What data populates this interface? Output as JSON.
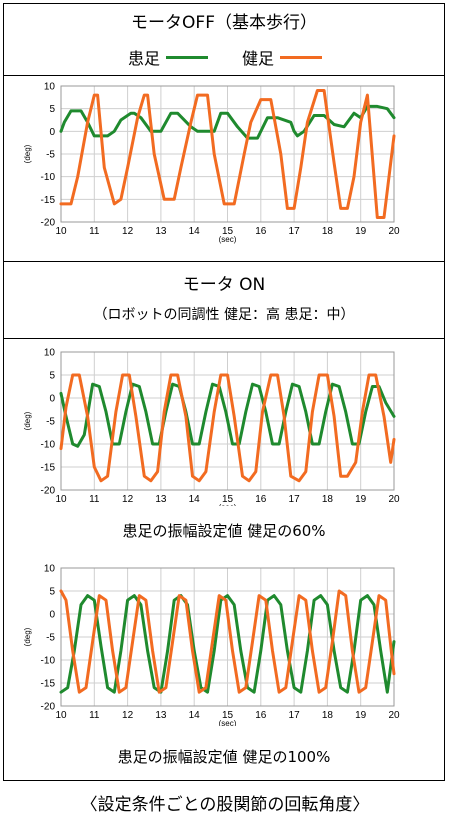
{
  "header": {
    "title": "モータOFF（基本歩行）",
    "legend": [
      {
        "label": "患足",
        "color": "#1f8a2e"
      },
      {
        "label": "健足",
        "color": "#f26b21"
      }
    ]
  },
  "section2": {
    "title": "モータ ON",
    "subtitle": "（ロボットの同調性 健足：高 患足：中）"
  },
  "captions": {
    "chart2": "患足の振幅設定値 健足の60%",
    "chart3": "患足の振幅設定値 健足の100%"
  },
  "footer": "〈設定条件ごとの股関節の回転角度〉",
  "colors": {
    "affected": "#1f8a2e",
    "healthy": "#f26b21",
    "grid": "#cfcfcf"
  },
  "chart_data": [
    {
      "type": "line",
      "xlabel": "(sec)",
      "ylabel": "(deg)",
      "xlim": [
        10,
        20
      ],
      "ylim": [
        -20,
        10
      ],
      "xticks": [
        10,
        11,
        12,
        13,
        14,
        15,
        16,
        17,
        18,
        19,
        20
      ],
      "yticks": [
        10,
        5,
        0,
        -5,
        -10,
        -15,
        -20
      ],
      "grid": true,
      "series": [
        {
          "name": "患足",
          "color": "#1f8a2e",
          "x": [
            10,
            10.1,
            10.3,
            10.6,
            10.8,
            11.0,
            11.4,
            11.6,
            11.8,
            12.1,
            12.2,
            12.4,
            12.7,
            13.0,
            13.3,
            13.5,
            13.9,
            14.1,
            14.6,
            14.8,
            15.0,
            15.3,
            15.6,
            15.9,
            16.2,
            16.5,
            16.9,
            17.0,
            17.1,
            17.3,
            17.6,
            17.9,
            18.2,
            18.5,
            18.8,
            19.0,
            19.2,
            19.5,
            19.8,
            20.0
          ],
          "y": [
            0,
            2,
            4.5,
            4.5,
            2,
            -1,
            -1,
            0,
            2.5,
            4,
            4,
            3,
            0,
            0,
            4,
            4,
            1,
            0,
            0,
            4,
            4,
            1,
            -1.5,
            -1.5,
            3,
            3,
            2,
            0,
            -1,
            0,
            3.5,
            3.5,
            1.5,
            1,
            4,
            3,
            5.5,
            5.5,
            5,
            3
          ]
        },
        {
          "name": "健足",
          "color": "#f26b21",
          "x": [
            10,
            10.3,
            10.5,
            10.8,
            11.0,
            11.1,
            11.3,
            11.6,
            11.8,
            12.0,
            12.3,
            12.5,
            12.6,
            12.8,
            13.1,
            13.4,
            13.6,
            13.9,
            14.1,
            14.4,
            14.6,
            14.9,
            15.2,
            15.5,
            15.7,
            16.0,
            16.3,
            16.6,
            16.8,
            17.0,
            17.2,
            17.4,
            17.7,
            17.9,
            18.2,
            18.4,
            18.6,
            18.8,
            19.0,
            19.2,
            19.5,
            19.7,
            20.0
          ],
          "y": [
            -16,
            -16,
            -10,
            2,
            8,
            8,
            -8,
            -16,
            -15,
            -8,
            3,
            8,
            8,
            -5,
            -15,
            -15,
            -8,
            2,
            8,
            8,
            -5,
            -16,
            -16,
            -5,
            2,
            7,
            7,
            -5,
            -17,
            -17,
            -8,
            2,
            9,
            9,
            -7,
            -17,
            -17,
            -10,
            2,
            8,
            -19,
            -19,
            -1
          ]
        }
      ]
    },
    {
      "type": "line",
      "xlabel": "(sec)",
      "ylabel": "(deg)",
      "xlim": [
        10,
        20
      ],
      "ylim": [
        -20,
        10
      ],
      "xticks": [
        10,
        11,
        12,
        13,
        14,
        15,
        16,
        17,
        18,
        19,
        20
      ],
      "yticks": [
        10,
        5,
        0,
        -5,
        -10,
        -15,
        -20
      ],
      "grid": true,
      "series": [
        {
          "name": "患足",
          "color": "#1f8a2e",
          "x": [
            10.0,
            10.15,
            10.35,
            10.5,
            10.7,
            10.95,
            11.15,
            11.35,
            11.55,
            11.75,
            11.95,
            12.15,
            12.35,
            12.55,
            12.75,
            12.95,
            13.15,
            13.35,
            13.55,
            13.75,
            13.95,
            14.15,
            14.35,
            14.55,
            14.75,
            14.95,
            15.15,
            15.35,
            15.55,
            15.75,
            15.95,
            16.15,
            16.35,
            16.55,
            16.75,
            16.95,
            17.15,
            17.35,
            17.55,
            17.75,
            17.95,
            18.15,
            18.35,
            18.55,
            18.75,
            18.95,
            19.15,
            19.35,
            19.55,
            19.75,
            20.0
          ],
          "y": [
            1,
            -4,
            -10,
            -10.5,
            -8,
            3,
            2.5,
            -3,
            -10,
            -10,
            -3,
            3,
            2.5,
            -3,
            -10,
            -10,
            -3,
            3,
            2.5,
            -3,
            -10,
            -10,
            -3,
            3,
            2.5,
            -3,
            -10,
            -10,
            -3,
            3,
            2.5,
            -3,
            -10,
            -10,
            -3,
            3,
            2.5,
            -3,
            -10,
            -10,
            -3,
            3,
            2.5,
            -3,
            -10,
            -10,
            -3,
            2.5,
            2.5,
            -1,
            -4
          ]
        },
        {
          "name": "健足",
          "color": "#f26b21",
          "x": [
            10.0,
            10.15,
            10.35,
            10.55,
            10.8,
            11.0,
            11.2,
            11.4,
            11.65,
            11.85,
            12.05,
            12.25,
            12.5,
            12.7,
            12.9,
            13.1,
            13.3,
            13.5,
            13.75,
            13.95,
            14.15,
            14.35,
            14.6,
            14.8,
            15.0,
            15.2,
            15.45,
            15.65,
            15.85,
            16.05,
            16.3,
            16.5,
            16.7,
            16.9,
            17.15,
            17.35,
            17.55,
            17.75,
            18.0,
            18.2,
            18.4,
            18.6,
            18.85,
            19.05,
            19.25,
            19.45,
            19.7,
            19.9,
            20.0
          ],
          "y": [
            -11,
            -2,
            5,
            5,
            -4,
            -15,
            -18,
            -17,
            -3,
            5,
            5,
            -4,
            -17,
            -18,
            -16,
            -3,
            5,
            5,
            -4,
            -17,
            -18,
            -16,
            -3,
            5,
            5,
            -4,
            -17,
            -18,
            -16,
            -3,
            5,
            5,
            -4,
            -17,
            -18,
            -16,
            -3,
            5,
            5,
            -4,
            -17,
            -17,
            -14,
            -3,
            5,
            5,
            -4,
            -14,
            -9
          ]
        }
      ]
    },
    {
      "type": "line",
      "xlabel": "(sec)",
      "ylabel": "(deg)",
      "xlim": [
        10,
        20
      ],
      "ylim": [
        -20,
        10
      ],
      "xticks": [
        10,
        11,
        12,
        13,
        14,
        15,
        16,
        17,
        18,
        19,
        20
      ],
      "yticks": [
        10,
        5,
        0,
        -5,
        -10,
        -15,
        -20
      ],
      "grid": true,
      "series": [
        {
          "name": "患足",
          "color": "#1f8a2e",
          "x": [
            10.0,
            10.2,
            10.4,
            10.6,
            10.8,
            11.0,
            11.2,
            11.4,
            11.6,
            11.8,
            12.0,
            12.2,
            12.4,
            12.6,
            12.8,
            13.0,
            13.2,
            13.4,
            13.6,
            13.8,
            14.0,
            14.2,
            14.4,
            14.6,
            14.8,
            15.0,
            15.2,
            15.4,
            15.6,
            15.8,
            16.0,
            16.2,
            16.4,
            16.6,
            16.8,
            17.0,
            17.2,
            17.4,
            17.6,
            17.8,
            18.0,
            18.2,
            18.4,
            18.6,
            18.8,
            19.0,
            19.2,
            19.4,
            19.6,
            19.8,
            20.0
          ],
          "y": [
            -17,
            -16,
            -8,
            2,
            4,
            3,
            -7,
            -16,
            -17,
            -8,
            3,
            4,
            2,
            -8,
            -16,
            -17,
            -8,
            3,
            4,
            2,
            -8,
            -16,
            -17,
            -8,
            3,
            4,
            2,
            -8,
            -16,
            -17,
            -8,
            3,
            4,
            2,
            -8,
            -16,
            -17,
            -8,
            3,
            4,
            2,
            -8,
            -16,
            -17,
            -8,
            3,
            4,
            2,
            -8,
            -17,
            -6
          ]
        },
        {
          "name": "健足",
          "color": "#f26b21",
          "x": [
            10.0,
            10.15,
            10.35,
            10.55,
            10.75,
            10.95,
            11.15,
            11.35,
            11.55,
            11.75,
            11.95,
            12.15,
            12.35,
            12.55,
            12.75,
            12.95,
            13.15,
            13.35,
            13.55,
            13.75,
            13.95,
            14.15,
            14.35,
            14.55,
            14.75,
            14.95,
            15.15,
            15.35,
            15.55,
            15.75,
            15.95,
            16.15,
            16.35,
            16.55,
            16.75,
            16.95,
            17.15,
            17.35,
            17.55,
            17.75,
            17.95,
            18.15,
            18.35,
            18.55,
            18.75,
            18.95,
            19.15,
            19.35,
            19.55,
            19.75,
            19.95,
            20.0
          ],
          "y": [
            5,
            3,
            -8,
            -17,
            -16,
            -6,
            4,
            3,
            -8,
            -17,
            -16,
            -6,
            4,
            3,
            -8,
            -17,
            -16,
            -6,
            4,
            3,
            -8,
            -17,
            -16,
            -6,
            4,
            3,
            -8,
            -17,
            -16,
            -6,
            4,
            3,
            -8,
            -17,
            -16,
            -6,
            4,
            3,
            -8,
            -17,
            -16,
            -6,
            5,
            4,
            -8,
            -17,
            -16,
            -6,
            4,
            3,
            -10,
            -13
          ]
        }
      ]
    }
  ]
}
